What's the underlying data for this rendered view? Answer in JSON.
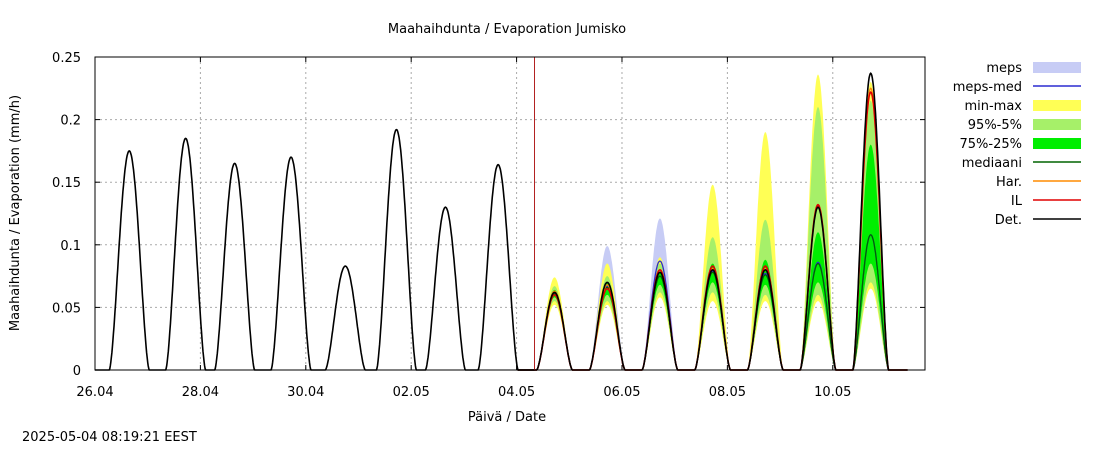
{
  "chart_data": {
    "type": "line",
    "title": "Maahaihdunta / Evaporation  Jumisko",
    "xlabel": "Päivä / Date",
    "ylabel": "Maahaihdunta / Evaporation (mm/h)",
    "ylim": [
      0,
      0.25
    ],
    "xlim": [
      0,
      15.75
    ],
    "xunit": "days since 26.04 00:00",
    "yticks": [
      "0",
      "0.05",
      "0.1",
      "0.15",
      "0.2",
      "0.25"
    ],
    "xticks": [
      {
        "day": 0,
        "label": "26.04"
      },
      {
        "day": 2,
        "label": "28.04"
      },
      {
        "day": 4,
        "label": "30.04"
      },
      {
        "day": 6,
        "label": "02.05"
      },
      {
        "day": 8,
        "label": "04.05"
      },
      {
        "day": 10,
        "label": "06.05"
      },
      {
        "day": 12,
        "label": "08.05"
      },
      {
        "day": 14,
        "label": "10.05"
      }
    ],
    "grid": true,
    "legend_position": "right",
    "now_marker_day": 8.34,
    "legend": [
      {
        "key": "meps",
        "label": "meps",
        "style": "band",
        "color": "#c7ccf5"
      },
      {
        "key": "meps-med",
        "label": "meps-med",
        "style": "line",
        "color": "#2b2bd0"
      },
      {
        "key": "min-max",
        "label": "min-max",
        "style": "band",
        "color": "#ffff55"
      },
      {
        "key": "p95-5",
        "label": "95%-5%",
        "style": "band",
        "color": "#a6f069"
      },
      {
        "key": "p75-25",
        "label": "75%-25%",
        "style": "band",
        "color": "#00ee00"
      },
      {
        "key": "mediaani",
        "label": "mediaani",
        "style": "line",
        "color": "#006400"
      },
      {
        "key": "har",
        "label": "Har.",
        "style": "line",
        "color": "#ff8c00"
      },
      {
        "key": "il",
        "label": "IL",
        "style": "line",
        "color": "#e00000"
      },
      {
        "key": "det",
        "label": "Det.",
        "style": "line",
        "color": "#000000"
      }
    ],
    "series": [
      {
        "name": "Det.",
        "kind": "observed",
        "peaks": [
          {
            "day": 0.65,
            "value": 0.175
          },
          {
            "day": 1.72,
            "value": 0.185
          },
          {
            "day": 2.65,
            "value": 0.165
          },
          {
            "day": 3.72,
            "value": 0.17
          },
          {
            "day": 4.75,
            "value": 0.083
          },
          {
            "day": 5.72,
            "value": 0.192
          },
          {
            "day": 6.65,
            "value": 0.13
          },
          {
            "day": 7.65,
            "value": 0.164
          }
        ]
      },
      {
        "name": "forecast",
        "kind": "forecast",
        "days": [
          {
            "day": 8.72,
            "det": 0.062,
            "il": 0.06,
            "har": 0.063,
            "median": 0.061,
            "meps_med": 0.062,
            "meps_max": 0.064,
            "q75": 0.064,
            "q25": 0.058,
            "q95": 0.067,
            "q5": 0.055,
            "max": 0.074,
            "min": 0.052
          },
          {
            "day": 9.72,
            "det": 0.07,
            "il": 0.065,
            "har": 0.068,
            "median": 0.066,
            "meps_med": 0.067,
            "meps_max": 0.099,
            "q75": 0.07,
            "q25": 0.06,
            "q95": 0.075,
            "q5": 0.055,
            "max": 0.085,
            "min": 0.052
          },
          {
            "day": 10.72,
            "det": 0.078,
            "il": 0.08,
            "har": 0.078,
            "median": 0.075,
            "meps_med": 0.087,
            "meps_max": 0.121,
            "q75": 0.078,
            "q25": 0.068,
            "q95": 0.085,
            "q5": 0.062,
            "max": 0.09,
            "min": 0.058
          },
          {
            "day": 11.72,
            "det": 0.08,
            "il": 0.083,
            "har": 0.081,
            "median": 0.078,
            "meps_med": 0.079,
            "meps_max": 0.082,
            "q75": 0.085,
            "q25": 0.07,
            "q95": 0.106,
            "q5": 0.062,
            "max": 0.148,
            "min": 0.055
          },
          {
            "day": 12.72,
            "det": 0.08,
            "il": 0.083,
            "har": 0.081,
            "median": 0.076,
            "meps_med": 0.077,
            "meps_max": 0.08,
            "q75": 0.088,
            "q25": 0.068,
            "q95": 0.12,
            "q5": 0.06,
            "max": 0.19,
            "min": 0.055
          },
          {
            "day": 13.72,
            "det": 0.13,
            "il": 0.132,
            "har": 0.131,
            "median": 0.085,
            "meps_med": 0.086,
            "meps_max": 0.09,
            "q75": 0.11,
            "q25": 0.07,
            "q95": 0.21,
            "q5": 0.06,
            "max": 0.236,
            "min": 0.055
          },
          {
            "day": 14.72,
            "det": 0.237,
            "il": 0.222,
            "har": 0.225,
            "median": 0.108,
            "meps_med": 0.108,
            "meps_max": 0.112,
            "q75": 0.18,
            "q25": 0.085,
            "q95": 0.215,
            "q5": 0.07,
            "max": 0.23,
            "min": 0.065
          }
        ]
      }
    ]
  },
  "footer": {
    "timestamp": "2025-05-04 08:19:21 EEST"
  }
}
